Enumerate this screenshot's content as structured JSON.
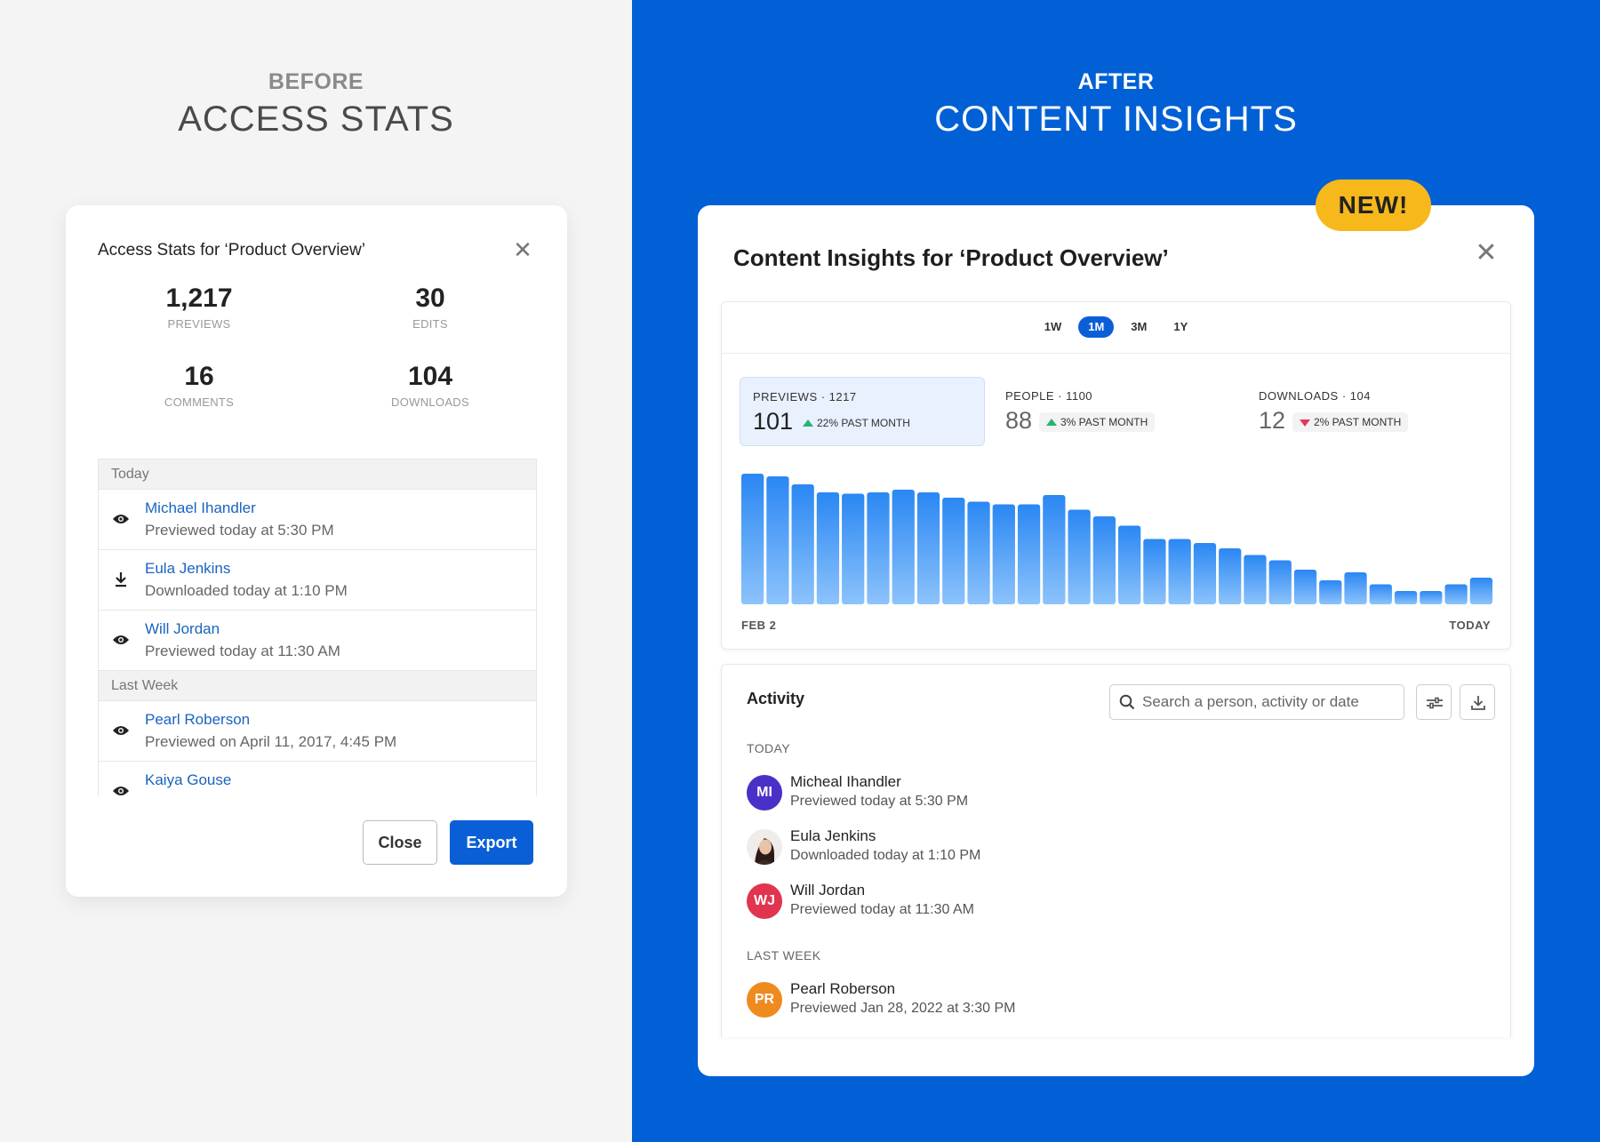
{
  "before": {
    "eyebrow": "BEFORE",
    "heading": "ACCESS STATS",
    "modal": {
      "title": "Access Stats for ‘Product Overview’",
      "stats": [
        {
          "value": "1,217",
          "label": "PREVIEWS"
        },
        {
          "value": "30",
          "label": "EDITS"
        },
        {
          "value": "16",
          "label": "COMMENTS"
        },
        {
          "value": "104",
          "label": "DOWNLOADS"
        }
      ],
      "groups": {
        "today": "Today",
        "last_week": "Last Week"
      },
      "rows": [
        {
          "name": "Michael Ihandler",
          "desc": "Previewed today at 5:30 PM",
          "icon": "eye-icon"
        },
        {
          "name": "Eula Jenkins",
          "desc": "Downloaded today at 1:10 PM",
          "icon": "download-icon"
        },
        {
          "name": "Will Jordan",
          "desc": "Previewed today at 11:30 AM",
          "icon": "eye-icon"
        },
        {
          "name": "Pearl Roberson",
          "desc": "Previewed on April 11, 2017, 4:45 PM",
          "icon": "eye-icon"
        },
        {
          "name": "Kaiya Gouse",
          "desc": "",
          "icon": "eye-icon"
        }
      ],
      "close_label": "Close",
      "export_label": "Export"
    }
  },
  "after": {
    "eyebrow": "AFTER",
    "heading": "CONTENT INSIGHTS",
    "badge": "NEW!",
    "modal": {
      "title": "Content Insights for ‘Product Overview’",
      "ranges": [
        "1W",
        "1M",
        "3M",
        "1Y"
      ],
      "active_range": "1M",
      "metrics": [
        {
          "label": "PREVIEWS · 1217",
          "value": "101",
          "change": "22% PAST MONTH",
          "trend": "up"
        },
        {
          "label": "PEOPLE · 1100",
          "value": "88",
          "change": "3% PAST MONTH",
          "trend": "up"
        },
        {
          "label": "DOWNLOADS · 104",
          "value": "12",
          "change": "2% PAST MONTH",
          "trend": "down"
        }
      ],
      "axis_start": "FEB 2",
      "axis_end": "TODAY",
      "activity": {
        "title": "Activity",
        "search_placeholder": "Search a person, activity or date",
        "section_today": "TODAY",
        "section_last_week": "LAST WEEK",
        "people": [
          {
            "initials": "MI",
            "name": "Micheal Ihandler",
            "desc": "Previewed today at 5:30 PM",
            "color": "#4b2fc9"
          },
          {
            "initials": "",
            "name": "Eula Jenkins",
            "desc": "Downloaded today at 1:10 PM",
            "color": "#e9d7cf"
          },
          {
            "initials": "WJ",
            "name": "Will Jordan",
            "desc": "Previewed today at 11:30 AM",
            "color": "#e0344f"
          },
          {
            "initials": "PR",
            "name": "Pearl Roberson",
            "desc": "Previewed Jan 28, 2022 at 3:30 PM",
            "color": "#ef8a1f"
          }
        ]
      }
    }
  },
  "chart_data": {
    "type": "bar",
    "series": [
      {
        "values": [
          98,
          96,
          90,
          84,
          83,
          84,
          86,
          84,
          80,
          77,
          75,
          75,
          82,
          71,
          66,
          59,
          49,
          49,
          46,
          42,
          37,
          33,
          26,
          18,
          24,
          15,
          10,
          10,
          15,
          20
        ]
      }
    ],
    "ylim": [
      0,
      100
    ],
    "color": "#2a87f3",
    "grid": false
  }
}
